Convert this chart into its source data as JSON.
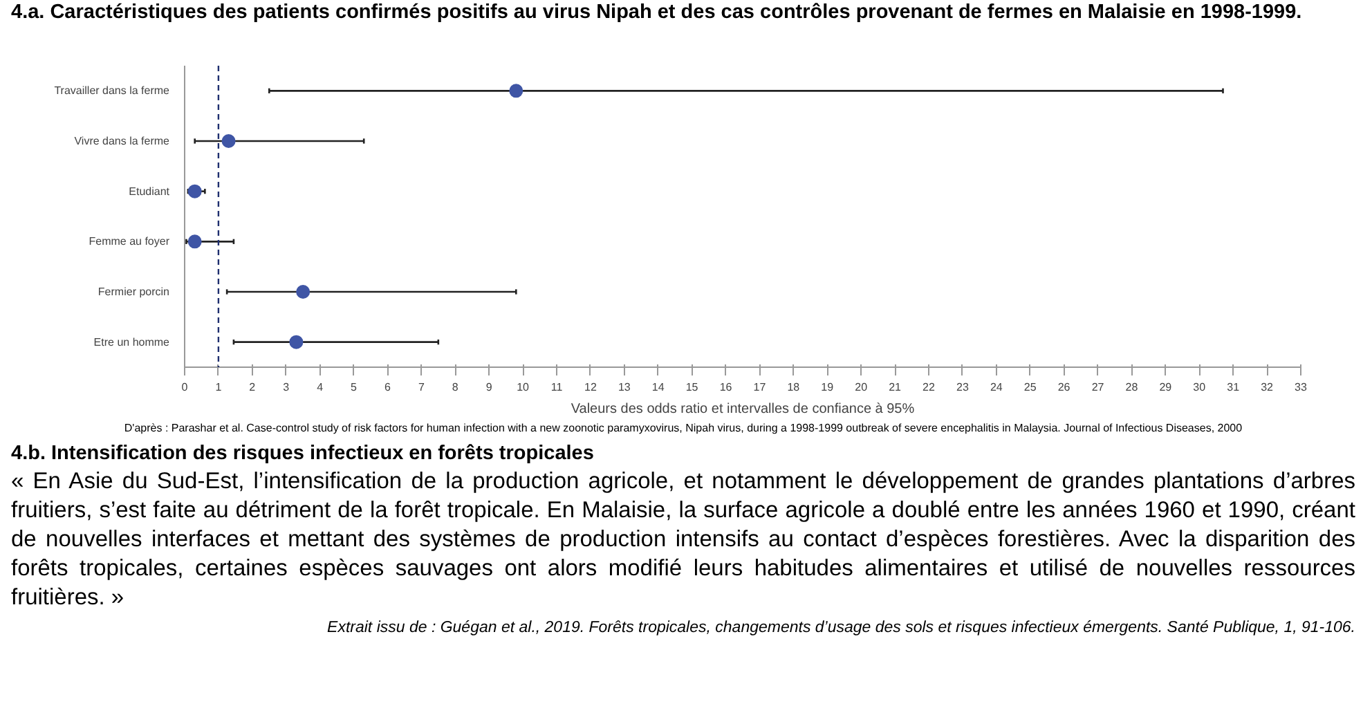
{
  "chart_data": {
    "type": "scatter",
    "orientation": "horizontal",
    "title": "4.a. Caractéristiques des patients confirmés positifs au virus Nipah et des cas contrôles provenant de fermes en Malaisie en 1998-1999.",
    "xlabel": "Valeurs des odds ratio et intervalles de confiance à 95%",
    "categories": [
      "Travailler dans la ferme",
      "Vivre dans la ferme",
      "Etudiant",
      "Femme au foyer",
      "Fermier porcin",
      "Etre un homme"
    ],
    "color": "#3f55a5",
    "values": [
      9.8,
      1.3,
      0.3,
      0.3,
      3.5,
      3.3
    ],
    "errors": [
      [
        2.5,
        30.7
      ],
      [
        0.3,
        5.3
      ],
      [
        0.1,
        0.6
      ],
      [
        0.05,
        1.45
      ],
      [
        1.25,
        9.8
      ],
      [
        1.45,
        7.5
      ]
    ],
    "marker": "circle",
    "xlim": [
      0,
      33
    ],
    "xticks": [
      0,
      1,
      2,
      3,
      4,
      5,
      6,
      7,
      8,
      9,
      10,
      11,
      12,
      13,
      14,
      15,
      16,
      17,
      18,
      19,
      20,
      21,
      22,
      23,
      24,
      25,
      26,
      27,
      28,
      29,
      30,
      31,
      32,
      33
    ],
    "ref_lines": [
      {
        "axis": "x",
        "value": 1,
        "color": "#1f2f6f",
        "line_style": "dashed"
      }
    ],
    "grid": false,
    "annotations": [
      "D'après : Parashar et al. Case-control study of risk factors for human infection with a new zoonotic paramyxovirus, Nipah virus, during a 1998-1999 outbreak of severe encephalitis in Malaysia. Journal of Infectious Diseases, 2000",
      "4.b. Intensification des risques infectieux en forêts tropicales",
      "« En Asie du Sud-Est, l’intensification de la production agricole, et notamment le développement de grandes plantations d’arbres fruitiers, s’est faite au détriment de la forêt tropicale. En Malaisie, la surface agricole a doublé entre les années 1960 et 1990, créant de nouvelles interfaces et mettant des systèmes de production intensifs au contact d’espèces forestières. Avec la disparition des forêts tropicales, certaines espèces sauvages ont alors modifié leurs habitudes alimentaires et utilisé de nouvelles ressources fruitières. »",
      "Extrait issu de : Guégan et al., 2019. Forêts tropicales, changements d’usage des sols et risques infectieux émergents. Santé Publique, 1, 91-106."
    ]
  }
}
